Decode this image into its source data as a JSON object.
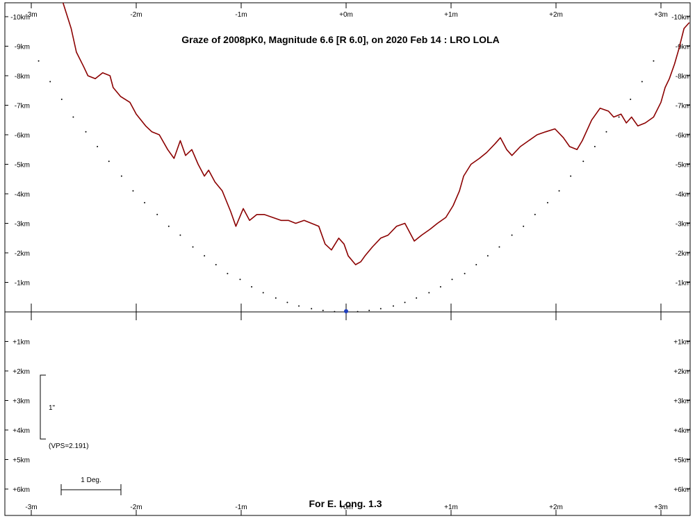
{
  "chart_data": {
    "type": "line",
    "title": "Graze of  2008pK0,  Magnitude 6.6 [R 6.0],  on 2020 Feb 14  :  LRO LOLA",
    "footer": "For E. Long. 1.3",
    "x_unit": "m",
    "y_unit": "km",
    "x_ticks": [
      "-3m",
      "-2m",
      "-1m",
      "+0m",
      "+1m",
      "+2m",
      "+3m"
    ],
    "x_tick_values": [
      -3,
      -2,
      -1,
      0,
      1,
      2,
      3
    ],
    "y_ticks_upper": [
      "-10km",
      "-9km",
      "-8km",
      "-7km",
      "-6km",
      "-5km",
      "-4km",
      "-3km",
      "-2km",
      "-1km"
    ],
    "y_ticks_upper_values": [
      -10,
      -9,
      -8,
      -7,
      -6,
      -5,
      -4,
      -3,
      -2,
      -1
    ],
    "y_ticks_lower": [
      "+1km",
      "+2km",
      "+3km",
      "+4km",
      "+5km",
      "+6km"
    ],
    "y_ticks_lower_values": [
      1,
      2,
      3,
      4,
      5,
      6
    ],
    "xlim": [
      -3,
      3
    ],
    "ylim": [
      -10.5,
      6.8
    ],
    "scale_bar_vertical_label": "1\"",
    "vps_label": "(VPS=2.191)",
    "scale_bar_horizontal_label": "1 Deg.",
    "colors": {
      "profile": "#8b0000",
      "axis": "#000000",
      "limb_dots": "#000000",
      "star": "#1f3fbf"
    },
    "series": [
      {
        "role": "lunar limb profile",
        "x": [
          -2.7,
          -2.62,
          -2.57,
          -2.5,
          -2.46,
          -2.39,
          -2.32,
          -2.25,
          -2.22,
          -2.15,
          -2.06,
          -2.0,
          -1.91,
          -1.85,
          -1.78,
          -1.7,
          -1.64,
          -1.58,
          -1.53,
          -1.47,
          -1.41,
          -1.35,
          -1.31,
          -1.25,
          -1.18,
          -1.1,
          -1.05,
          -0.98,
          -0.92,
          -0.85,
          -0.78,
          -0.7,
          -0.62,
          -0.55,
          -0.48,
          -0.4,
          -0.33,
          -0.26,
          -0.2,
          -0.14,
          -0.07,
          -0.02,
          0.02,
          0.09,
          0.14,
          0.18,
          0.25,
          0.33,
          0.4,
          0.48,
          0.56,
          0.65,
          0.72,
          0.8,
          0.87,
          0.95,
          1.02,
          1.08,
          1.12,
          1.19,
          1.27,
          1.34,
          1.42,
          1.47,
          1.53,
          1.58,
          1.66,
          1.74,
          1.82,
          1.9,
          1.99,
          2.07,
          2.13,
          2.2,
          2.25,
          2.34,
          2.42,
          2.5,
          2.55,
          2.62,
          2.67,
          2.72,
          2.78,
          2.85,
          2.93,
          3.0,
          3.04,
          3.08,
          3.13,
          3.17,
          3.22,
          3.27
        ],
        "y": [
          -10.5,
          -9.6,
          -8.8,
          -8.3,
          -8.0,
          -7.9,
          -8.1,
          -8.0,
          -7.6,
          -7.3,
          -7.1,
          -6.7,
          -6.3,
          -6.1,
          -6.0,
          -5.5,
          -5.2,
          -5.8,
          -5.3,
          -5.5,
          -5.0,
          -4.6,
          -4.8,
          -4.4,
          -4.1,
          -3.4,
          -2.9,
          -3.5,
          -3.1,
          -3.3,
          -3.3,
          -3.2,
          -3.1,
          -3.1,
          -3.0,
          -3.1,
          -3.0,
          -2.9,
          -2.3,
          -2.1,
          -2.5,
          -2.3,
          -1.9,
          -1.6,
          -1.7,
          -1.9,
          -2.2,
          -2.5,
          -2.6,
          -2.9,
          -3.0,
          -2.4,
          -2.6,
          -2.8,
          -3.0,
          -3.2,
          -3.6,
          -4.1,
          -4.6,
          -5.0,
          -5.2,
          -5.4,
          -5.7,
          -5.9,
          -5.5,
          -5.3,
          -5.6,
          -5.8,
          -6.0,
          -6.1,
          -6.2,
          -5.9,
          -5.6,
          -5.5,
          -5.8,
          -6.5,
          -6.9,
          -6.8,
          -6.6,
          -6.7,
          -6.4,
          -6.6,
          -6.3,
          -6.4,
          -6.6,
          -7.1,
          -7.6,
          -7.9,
          -8.4,
          -8.9,
          -9.6,
          -9.8
        ]
      },
      {
        "role": "mean limb (dotted)",
        "x": [
          -2.93,
          -2.82,
          -2.71,
          -2.6,
          -2.48,
          -2.37,
          -2.26,
          -2.14,
          -2.03,
          -1.92,
          -1.8,
          -1.69,
          -1.58,
          -1.46,
          -1.35,
          -1.24,
          -1.13,
          -1.01,
          -0.9,
          -0.79,
          -0.67,
          -0.56,
          -0.45,
          -0.33,
          -0.22,
          -0.11,
          0.0,
          0.11,
          0.22,
          0.33,
          0.45,
          0.56,
          0.67,
          0.79,
          0.9,
          1.01,
          1.13,
          1.24,
          1.35,
          1.46,
          1.58,
          1.69,
          1.8,
          1.92,
          2.03,
          2.14,
          2.26,
          2.37,
          2.48,
          2.6,
          2.71,
          2.82,
          2.93
        ],
        "y": [
          -8.5,
          -7.8,
          -7.2,
          -6.6,
          -6.1,
          -5.6,
          -5.1,
          -4.6,
          -4.1,
          -3.7,
          -3.3,
          -2.9,
          -2.6,
          -2.2,
          -1.9,
          -1.6,
          -1.3,
          -1.1,
          -0.85,
          -0.65,
          -0.47,
          -0.32,
          -0.2,
          -0.11,
          -0.05,
          -0.01,
          0.0,
          -0.01,
          -0.05,
          -0.11,
          -0.2,
          -0.32,
          -0.47,
          -0.65,
          -0.85,
          -1.1,
          -1.3,
          -1.6,
          -1.9,
          -2.2,
          -2.6,
          -2.9,
          -3.3,
          -3.7,
          -4.1,
          -4.6,
          -5.1,
          -5.6,
          -6.1,
          -6.6,
          -7.2,
          -7.8,
          -8.5
        ]
      }
    ],
    "star": {
      "x": 0.0,
      "y": 0.0
    }
  }
}
